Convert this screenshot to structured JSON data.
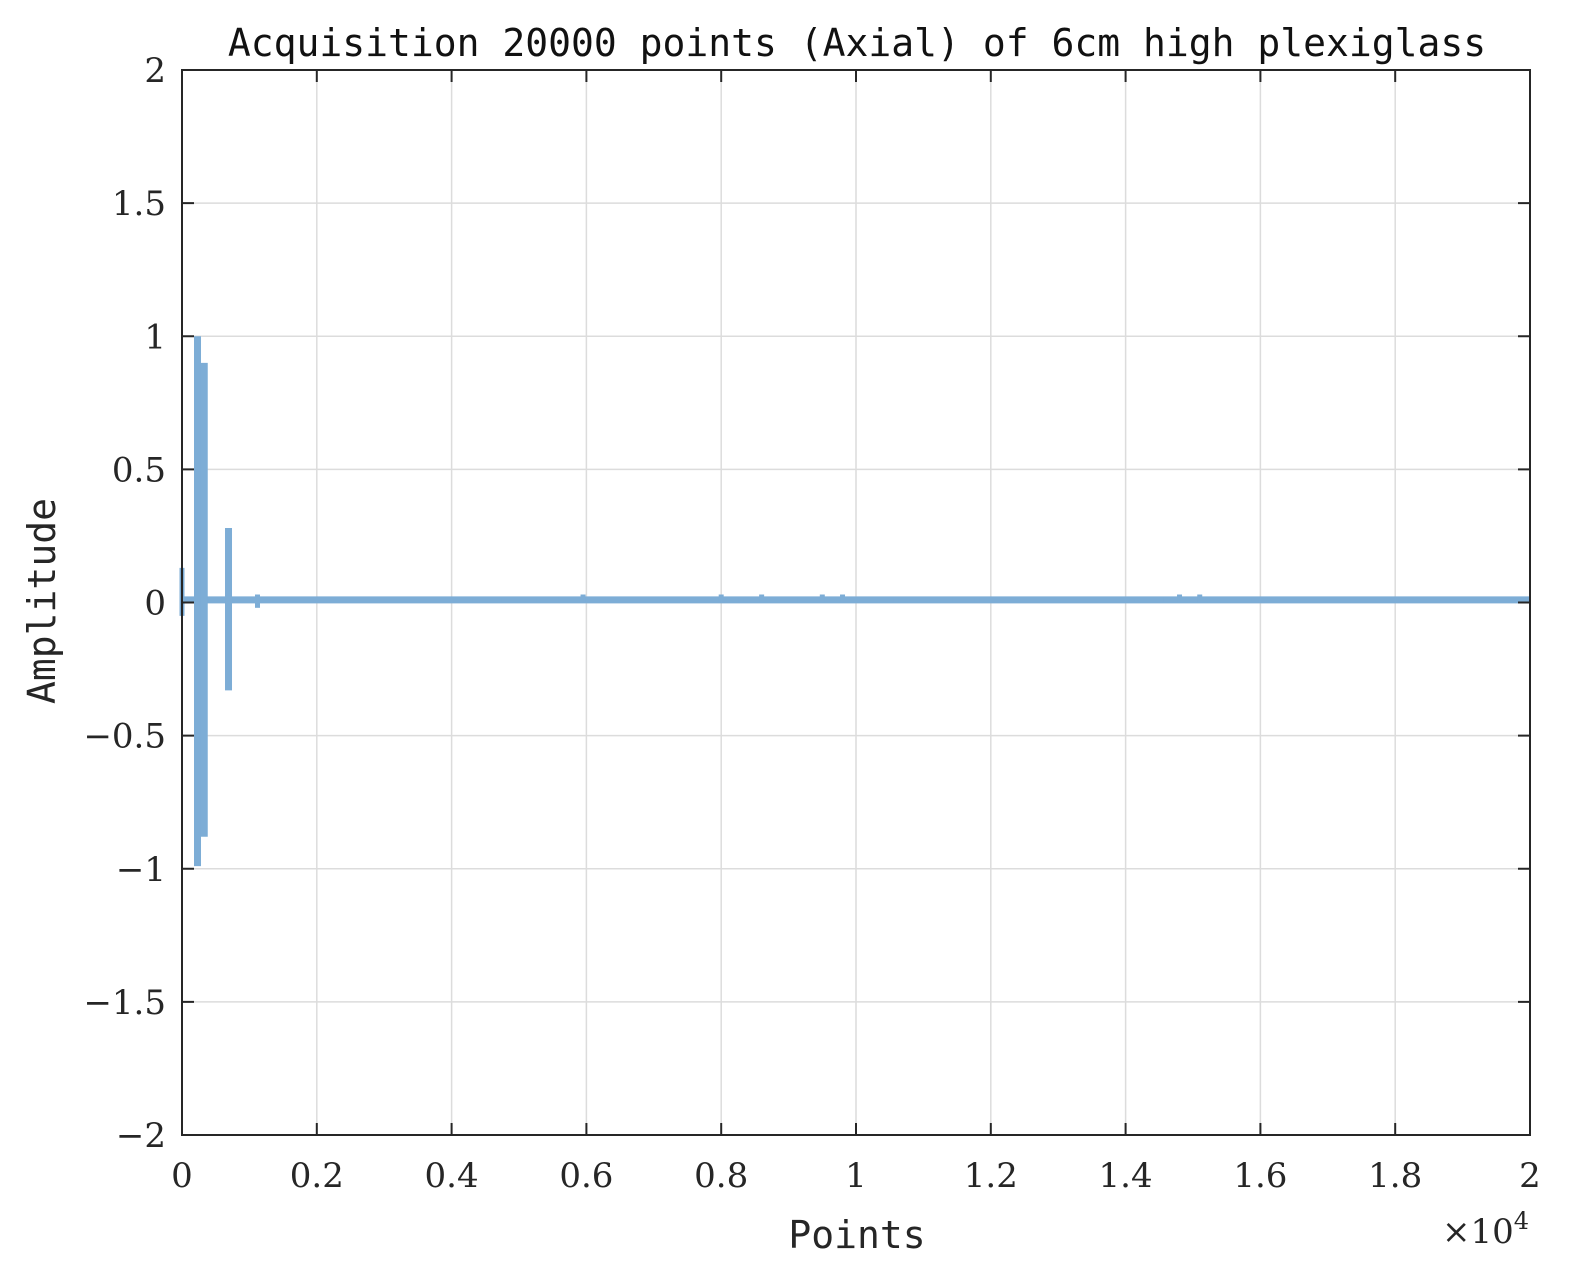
{
  "chart_data": {
    "type": "line",
    "title": "Acquisition 20000 points (Axial) of 6cm high plexiglass",
    "xlabel": "Points",
    "ylabel": "Amplitude",
    "x_exponent_label": "×10",
    "x_exponent_power": "4",
    "xlim": [
      0,
      20000
    ],
    "ylim": [
      -2,
      2
    ],
    "x_ticks": [
      0,
      2000,
      4000,
      6000,
      8000,
      10000,
      12000,
      14000,
      16000,
      18000,
      20000
    ],
    "x_tick_labels": [
      "0",
      "0.2",
      "0.4",
      "0.6",
      "0.8",
      "1",
      "1.2",
      "1.4",
      "1.6",
      "1.8",
      "2"
    ],
    "y_ticks": [
      2,
      1.5,
      1,
      0.5,
      0,
      -0.5,
      -1,
      -1.5,
      -2
    ],
    "y_tick_labels": [
      "2",
      "1.5",
      "1",
      "0.5",
      "0",
      "−0.5",
      "−1",
      "−1.5",
      "−2"
    ],
    "grid": true,
    "series": [
      {
        "color": "#7dadd6",
        "baseline": 0.01,
        "bursts": [
          {
            "x": 0,
            "max": 0.13,
            "min": -0.05
          },
          {
            "x": 230,
            "max": 1.0,
            "min": -0.99
          },
          {
            "x": 330,
            "max": 0.9,
            "min": -0.88
          },
          {
            "x": 690,
            "max": 0.28,
            "min": -0.33
          },
          {
            "x": 1120,
            "max": 0.03,
            "min": -0.02
          },
          {
            "x": 4350,
            "max": 0.02,
            "min": 0.0
          },
          {
            "x": 4700,
            "max": 0.02,
            "min": 0.0
          },
          {
            "x": 5300,
            "max": 0.02,
            "min": 0.0
          },
          {
            "x": 5550,
            "max": 0.02,
            "min": 0.0
          },
          {
            "x": 5950,
            "max": 0.03,
            "min": 0.0
          },
          {
            "x": 8000,
            "max": 0.03,
            "min": 0.0
          },
          {
            "x": 8300,
            "max": 0.02,
            "min": 0.0
          },
          {
            "x": 8600,
            "max": 0.03,
            "min": 0.0
          },
          {
            "x": 9100,
            "max": 0.02,
            "min": 0.0
          },
          {
            "x": 9500,
            "max": 0.03,
            "min": 0.0
          },
          {
            "x": 9800,
            "max": 0.03,
            "min": 0.0
          },
          {
            "x": 10600,
            "max": 0.02,
            "min": 0.0
          },
          {
            "x": 11400,
            "max": 0.02,
            "min": 0.0
          },
          {
            "x": 11800,
            "max": 0.02,
            "min": 0.0
          },
          {
            "x": 14100,
            "max": 0.02,
            "min": 0.0
          },
          {
            "x": 14600,
            "max": 0.02,
            "min": 0.0
          },
          {
            "x": 14800,
            "max": 0.03,
            "min": 0.0
          },
          {
            "x": 15100,
            "max": 0.03,
            "min": 0.0
          },
          {
            "x": 15900,
            "max": 0.02,
            "min": 0.0
          }
        ]
      }
    ]
  }
}
